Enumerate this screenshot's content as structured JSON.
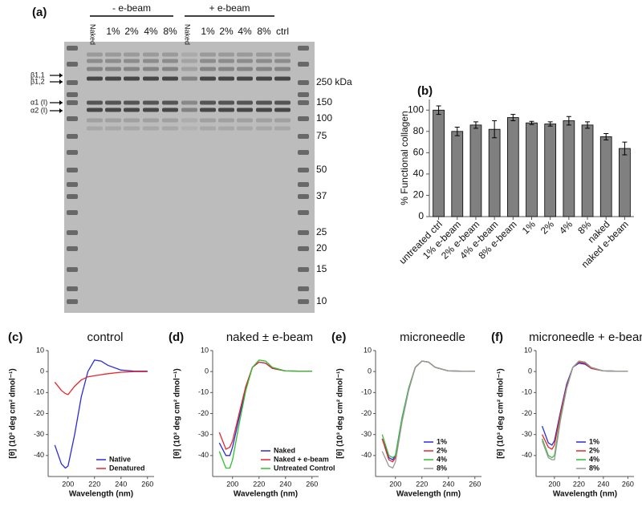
{
  "gel": {
    "label": "(a)",
    "groups": [
      "- e-beam",
      "+ e-beam"
    ],
    "lanes": [
      "Naked",
      "1%",
      "2%",
      "4%",
      "8%",
      "Naked",
      "1%",
      "2%",
      "4%",
      "8%",
      "ctrl"
    ],
    "bands": [
      "β1,1",
      "β1,2",
      "α1 (I)",
      "α2 (I)"
    ],
    "markers": [
      "250 kDa",
      "150",
      "100",
      "75",
      "50",
      "37",
      "25",
      "20",
      "15",
      "10"
    ]
  },
  "chart_data": [
    {
      "type": "bar",
      "label": "(b)",
      "ylabel": "% Functional collagen",
      "categories": [
        "untreated ctrl",
        "1% e-beam",
        "2% e-beam",
        "4% e-beam",
        "8% e-beam",
        "1%",
        "2%",
        "4%",
        "8%",
        "naked",
        "naked e-beam"
      ],
      "values": [
        100,
        80,
        86,
        82,
        93,
        88,
        87,
        90,
        86,
        75,
        64
      ],
      "errors": [
        4,
        4,
        3,
        8,
        3,
        1.5,
        2,
        4,
        3,
        3,
        6
      ],
      "color": "#808080",
      "ylim": [
        0,
        110
      ],
      "yticks": [
        0,
        20,
        40,
        60,
        80,
        100
      ]
    },
    {
      "type": "line",
      "label": "(c)",
      "title": "control",
      "xlabel": "Wavelength (nm)",
      "ylabel": "[θ]  (10³ deg cm² dmol⁻¹)",
      "x": [
        190,
        195,
        198,
        200,
        205,
        210,
        215,
        220,
        225,
        230,
        240,
        250,
        260
      ],
      "series": [
        {
          "name": "Native",
          "color": "#2b2bd9",
          "values": [
            -35,
            -44,
            -46,
            -45,
            -30,
            -12,
            0,
            5.5,
            5,
            3,
            0.7,
            0.2,
            0.2
          ]
        },
        {
          "name": "Denatured",
          "color": "#e8262b",
          "values": [
            -5,
            -9,
            -10.5,
            -11,
            -7,
            -4,
            -2.5,
            -2,
            -1.5,
            -1,
            -0.3,
            0,
            0
          ]
        }
      ],
      "xlim": [
        185,
        265
      ],
      "ylim": [
        -50,
        10
      ],
      "xticks": [
        200,
        220,
        240,
        260
      ],
      "yticks": [
        -40,
        -30,
        -20,
        -10,
        0,
        10
      ],
      "legend": "lower right"
    },
    {
      "type": "line",
      "label": "(d)",
      "title": "naked ± e-beam",
      "xlabel": "Wavelength (nm)",
      "ylabel": "[θ]  (10³ deg cm² dmol⁻¹)",
      "x": [
        190,
        195,
        198,
        200,
        205,
        210,
        215,
        220,
        225,
        230,
        240,
        250,
        260
      ],
      "series": [
        {
          "name": "Naked",
          "color": "#2b2bd9",
          "values": [
            -34,
            -40,
            -40,
            -36,
            -22,
            -8,
            2,
            4.5,
            4,
            1.5,
            0.3,
            0.2,
            0.2
          ]
        },
        {
          "name": "Naked + e-beam",
          "color": "#e8262b",
          "values": [
            -29,
            -37,
            -36,
            -33,
            -20,
            -7,
            2,
            4.5,
            4,
            1.5,
            0.3,
            0.2,
            0.2
          ]
        },
        {
          "name": "Untreated Control",
          "color": "#2fbf2f",
          "values": [
            -38,
            -46,
            -46,
            -42,
            -25,
            -9,
            2,
            5.5,
            5,
            2,
            0.3,
            0.2,
            0.2
          ]
        }
      ],
      "xlim": [
        185,
        265
      ],
      "ylim": [
        -50,
        10
      ],
      "xticks": [
        200,
        220,
        240,
        260
      ],
      "yticks": [
        -40,
        -30,
        -20,
        -10,
        0,
        10
      ],
      "legend": "lower right"
    },
    {
      "type": "line",
      "label": "(e)",
      "title": "microneedle",
      "xlabel": "Wavelength (nm)",
      "ylabel": "[θ]  (10³ deg cm² dmol⁻¹)",
      "x": [
        190,
        195,
        198,
        200,
        205,
        210,
        215,
        220,
        225,
        230,
        240,
        250,
        260
      ],
      "series": [
        {
          "name": "1%",
          "color": "#2b2bd9",
          "values": [
            -32,
            -41,
            -42,
            -40,
            -22,
            -8,
            2,
            5,
            4.5,
            2,
            0.3,
            0.2,
            0.2
          ]
        },
        {
          "name": "2%",
          "color": "#e8262b",
          "values": [
            -32,
            -42,
            -43,
            -41,
            -23,
            -8,
            2,
            5,
            4.5,
            2,
            0.3,
            0.2,
            0.2
          ]
        },
        {
          "name": "4%",
          "color": "#2fbf2f",
          "values": [
            -30,
            -40,
            -41,
            -40,
            -22,
            -8,
            2,
            5,
            4.5,
            2,
            0.3,
            0.2,
            0.2
          ]
        },
        {
          "name": "8%",
          "color": "#999999",
          "values": [
            -38,
            -45,
            -46,
            -43,
            -24,
            -9,
            2,
            5,
            4.5,
            2,
            0.3,
            0.2,
            0.2
          ]
        }
      ],
      "xlim": [
        185,
        265
      ],
      "ylim": [
        -50,
        10
      ],
      "xticks": [
        200,
        220,
        240,
        260
      ],
      "yticks": [
        -40,
        -30,
        -20,
        -10,
        0,
        10
      ],
      "legend": "lower right"
    },
    {
      "type": "line",
      "label": "(f)",
      "title": "microneedle + e-beam",
      "xlabel": "Wavelength (nm)",
      "ylabel": "[θ]  (10³ deg cm² dmol⁻¹)",
      "x": [
        190,
        195,
        198,
        200,
        205,
        210,
        215,
        220,
        225,
        230,
        240,
        250,
        260
      ],
      "series": [
        {
          "name": "1%",
          "color": "#2b2bd9",
          "values": [
            -26,
            -34,
            -35,
            -33,
            -19,
            -6,
            2,
            4,
            3.5,
            1.5,
            0.3,
            0.2,
            0.2
          ]
        },
        {
          "name": "2%",
          "color": "#e8262b",
          "values": [
            -30,
            -36,
            -37,
            -35,
            -20,
            -7,
            2,
            4.5,
            4,
            1.5,
            0.3,
            0.2,
            0.2
          ]
        },
        {
          "name": "4%",
          "color": "#2fbf2f",
          "values": [
            -32,
            -40,
            -41,
            -40,
            -22,
            -8,
            2,
            5,
            4.5,
            2,
            0.3,
            0.2,
            0.2
          ]
        },
        {
          "name": "8%",
          "color": "#999999",
          "values": [
            -33,
            -41,
            -42,
            -42,
            -23,
            -8,
            2,
            5,
            4.5,
            2,
            0.3,
            0.2,
            0.2
          ]
        }
      ],
      "xlim": [
        185,
        265
      ],
      "ylim": [
        -50,
        10
      ],
      "xticks": [
        200,
        220,
        240,
        260
      ],
      "yticks": [
        -40,
        -30,
        -20,
        -10,
        0,
        10
      ],
      "legend": "lower right"
    }
  ]
}
